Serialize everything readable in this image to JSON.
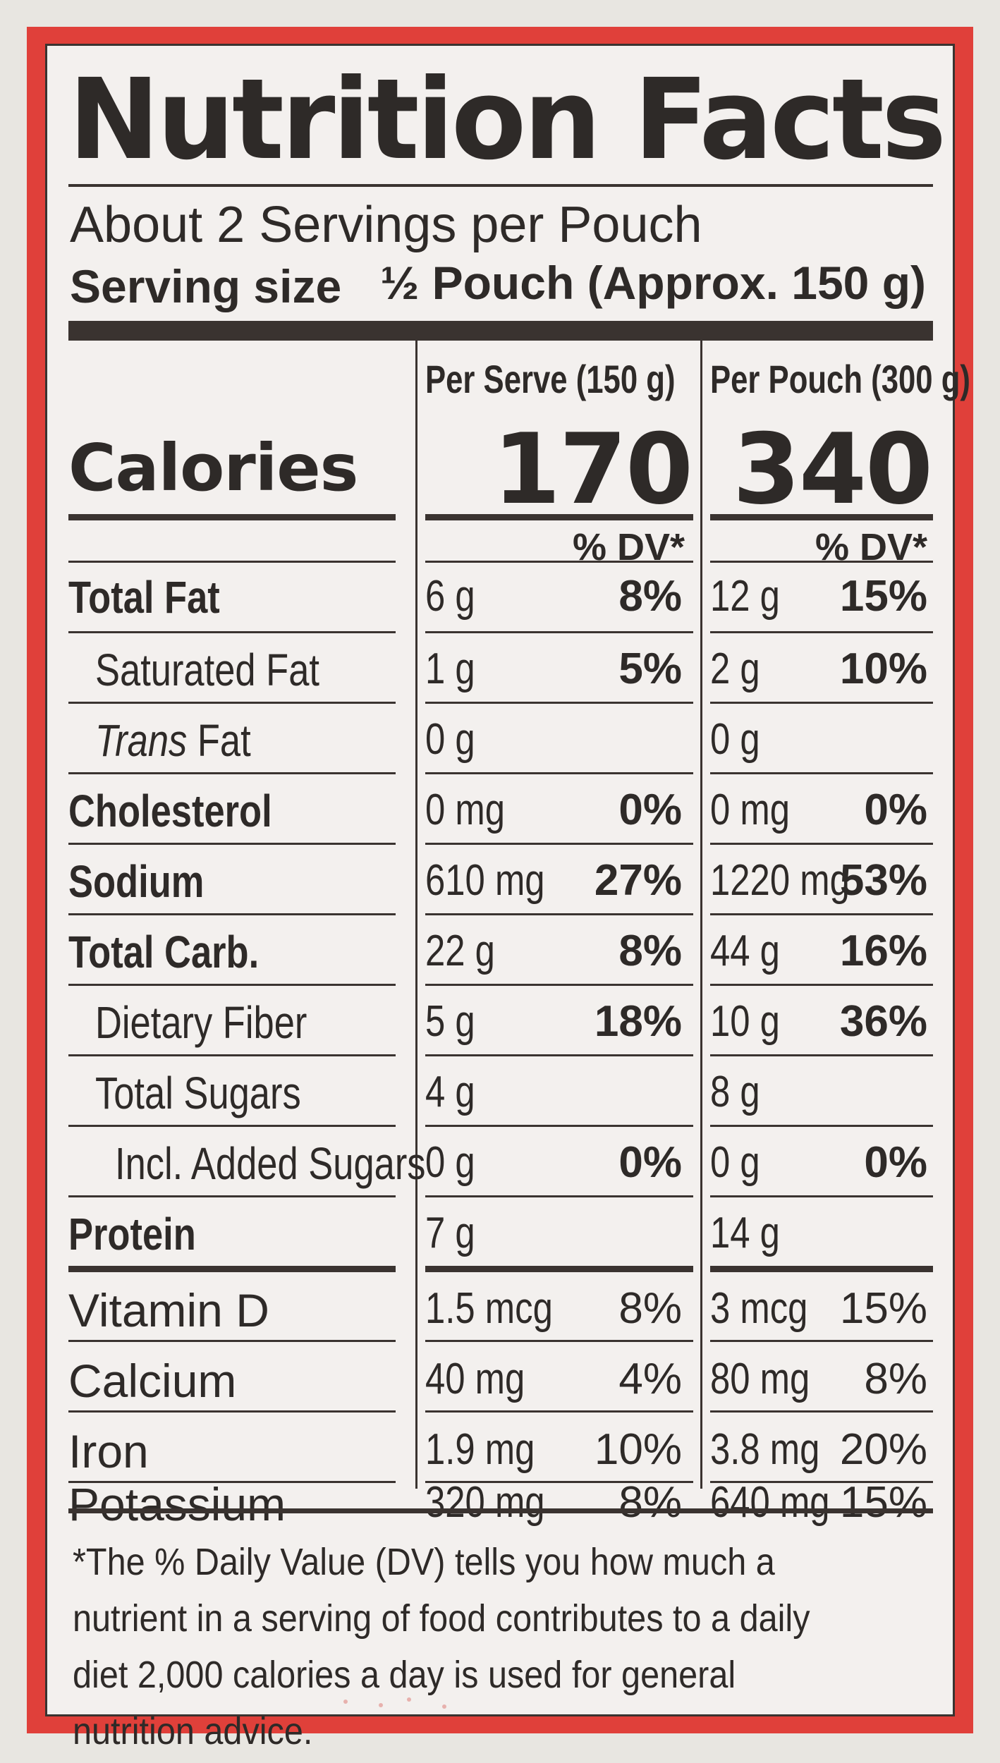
{
  "label": {
    "title": "Nutrition Facts",
    "servings_per_container": "About 2 Servings per Pouch",
    "serving_size_label": "Serving size",
    "serving_size_value": "½ Pouch (Approx. 150 g)",
    "columns": [
      {
        "header": "Per Serve (150 g)",
        "calories": "170",
        "dv_header": "% DV*"
      },
      {
        "header": "Per Pouch (300 g)",
        "calories": "340",
        "dv_header": "% DV*"
      }
    ],
    "calories_label": "Calories",
    "nutrients": [
      {
        "name": "Total Fat",
        "serve_amount": "6 g",
        "serve_dv": "8%",
        "pouch_amount": "12 g",
        "pouch_dv": "15%"
      },
      {
        "name": "Saturated Fat",
        "serve_amount": "1 g",
        "serve_dv": "5%",
        "pouch_amount": "2 g",
        "pouch_dv": "10%"
      },
      {
        "name_italic": "Trans",
        "name_rest": " Fat",
        "serve_amount": "0 g",
        "serve_dv": "",
        "pouch_amount": "0 g",
        "pouch_dv": ""
      },
      {
        "name": "Cholesterol",
        "serve_amount": "0 mg",
        "serve_dv": "0%",
        "pouch_amount": "0 mg",
        "pouch_dv": "0%"
      },
      {
        "name": "Sodium",
        "serve_amount": "610 mg",
        "serve_dv": "27%",
        "pouch_amount": "1220 mg",
        "pouch_dv": "53%"
      },
      {
        "name": "Total Carb.",
        "serve_amount": "22 g",
        "serve_dv": "8%",
        "pouch_amount": "44 g",
        "pouch_dv": "16%"
      },
      {
        "name": "Dietary Fiber",
        "serve_amount": "5 g",
        "serve_dv": "18%",
        "pouch_amount": "10 g",
        "pouch_dv": "36%"
      },
      {
        "name": "Total Sugars",
        "serve_amount": "4 g",
        "serve_dv": "",
        "pouch_amount": "8 g",
        "pouch_dv": ""
      },
      {
        "name": "Incl. Added Sugars",
        "serve_amount": "0 g",
        "serve_dv": "0%",
        "pouch_amount": "0 g",
        "pouch_dv": "0%"
      },
      {
        "name": "Protein",
        "serve_amount": "7 g",
        "serve_dv": "",
        "pouch_amount": "14 g",
        "pouch_dv": ""
      }
    ],
    "vitamins": [
      {
        "name": "Vitamin D",
        "serve_amount": "1.5 mcg",
        "serve_dv": "8%",
        "pouch_amount": "3 mcg",
        "pouch_dv": "15%"
      },
      {
        "name": "Calcium",
        "serve_amount": "40 mg",
        "serve_dv": "4%",
        "pouch_amount": "80 mg",
        "pouch_dv": "8%"
      },
      {
        "name": "Iron",
        "serve_amount": "1.9 mg",
        "serve_dv": "10%",
        "pouch_amount": "3.8 mg",
        "pouch_dv": "20%"
      },
      {
        "name": "Potassium",
        "serve_amount": "320 mg",
        "serve_dv": "8%",
        "pouch_amount": "640 mg",
        "pouch_dv": "15%"
      }
    ],
    "footnote": "*The % Daily Value (DV) tells you how much a nutrient in a serving of food contributes to a daily diet 2,000 calories a day is used for general nutrition advice."
  },
  "colors": {
    "border_red": "#e0403a",
    "ink": "#2e2a28",
    "paper": "#f3f0ee"
  }
}
